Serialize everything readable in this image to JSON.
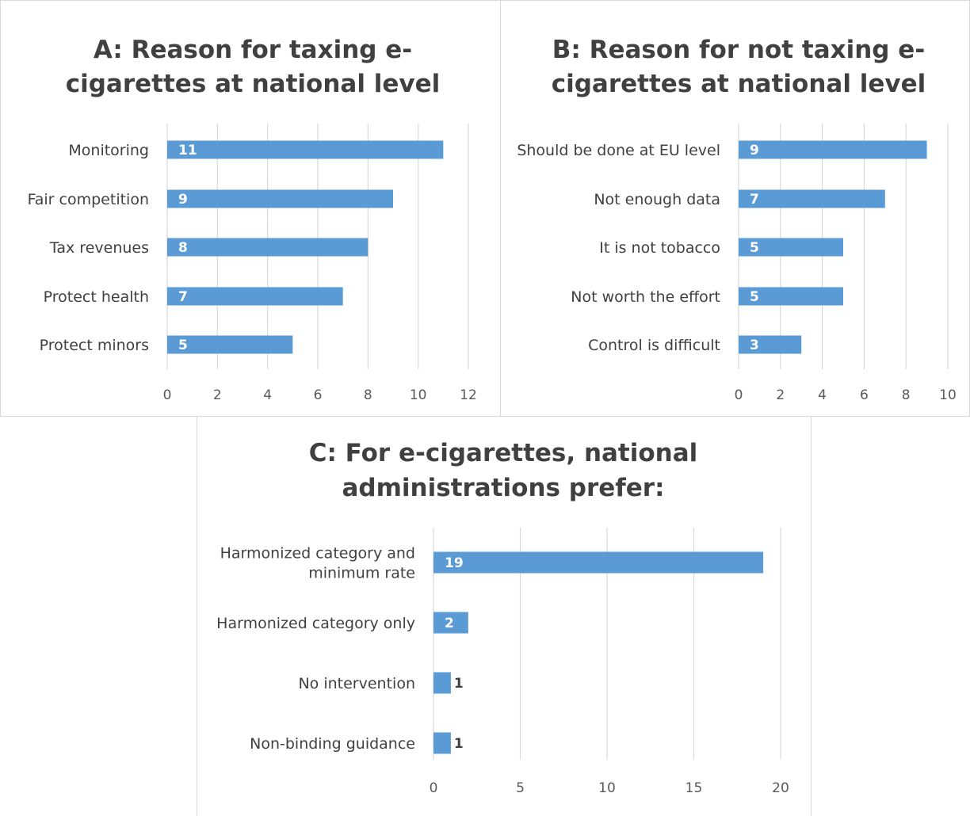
{
  "chart_data": [
    {
      "id": "a",
      "type": "bar",
      "orientation": "horizontal",
      "title_lines": [
        "A: Reason for taxing e-",
        "cigarettes at national level"
      ],
      "categories": [
        [
          "Monitoring"
        ],
        [
          "Fair competition"
        ],
        [
          "Tax revenues"
        ],
        [
          "Protect health"
        ],
        [
          "Protect minors"
        ]
      ],
      "values": [
        11,
        9,
        8,
        7,
        5
      ],
      "xlim": [
        0,
        12
      ],
      "xticks": [
        0,
        2,
        4,
        6,
        8,
        10,
        12
      ],
      "grid": true,
      "color": "#5b9bd5"
    },
    {
      "id": "b",
      "type": "bar",
      "orientation": "horizontal",
      "title_lines": [
        "B: Reason for not taxing e-",
        "cigarettes at national level"
      ],
      "categories": [
        [
          "Should be done at EU level"
        ],
        [
          "Not enough data"
        ],
        [
          "It is not tobacco"
        ],
        [
          "Not worth the effort"
        ],
        [
          "Control is difficult"
        ]
      ],
      "values": [
        9,
        7,
        5,
        5,
        3
      ],
      "xlim": [
        0,
        10
      ],
      "xticks": [
        0,
        2,
        4,
        6,
        8,
        10
      ],
      "grid": true,
      "color": "#5b9bd5"
    },
    {
      "id": "c",
      "type": "bar",
      "orientation": "horizontal",
      "title_lines": [
        "C: For e-cigarettes, national",
        "administrations prefer:"
      ],
      "categories": [
        [
          "Harmonized category and",
          "minimum rate"
        ],
        [
          "Harmonized category only"
        ],
        [
          "No intervention"
        ],
        [
          "Non-binding guidance"
        ]
      ],
      "values": [
        19,
        2,
        1,
        1
      ],
      "xlim": [
        0,
        20
      ],
      "xticks": [
        0,
        5,
        10,
        15,
        20
      ],
      "grid": true,
      "color": "#5b9bd5"
    }
  ]
}
